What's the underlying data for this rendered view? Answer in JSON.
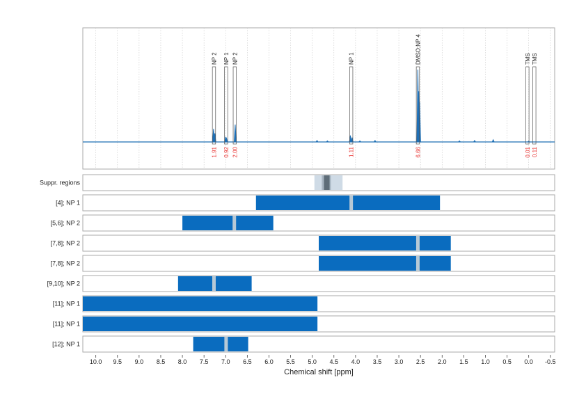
{
  "colors": {
    "spectrum": "#1f6fb4",
    "bar": "#0a6cbf",
    "bar_marker": "#b7c9d6",
    "integral_text": "#e8312f",
    "panel_border": "#aaaaaa",
    "supp_light": "#cfdbe6",
    "supp_mid": "#a8b6c2",
    "supp_dark": "#5e6d78"
  },
  "chart_data": {
    "type": "line",
    "xlabel": "Chemical shift [ppm]",
    "xlim": [
      10.3,
      -0.6
    ],
    "x_ticks": [
      10.0,
      9.5,
      9.0,
      8.5,
      8.0,
      7.5,
      7.0,
      6.5,
      6.0,
      5.5,
      5.0,
      4.5,
      4.0,
      3.5,
      3.0,
      2.5,
      2.0,
      1.5,
      1.0,
      0.5,
      0.0,
      -0.5
    ],
    "x_tick_labels": [
      "10.0",
      "9.5",
      "9.0",
      "8.5",
      "8.0",
      "7.5",
      "7.0",
      "6.5",
      "6.0",
      "5.5",
      "5.0",
      "4.5",
      "4.0",
      "3.5",
      "3.0",
      "2.5",
      "2.0",
      "1.5",
      "1.0",
      "0.5",
      "0.0",
      "-0.5"
    ],
    "grid": true,
    "spectrum_peaks": [
      {
        "ppm": 7.28,
        "height": 0.18
      },
      {
        "ppm": 7.25,
        "height": 0.12
      },
      {
        "ppm": 7.0,
        "height": 0.07
      },
      {
        "ppm": 6.98,
        "height": 0.05
      },
      {
        "ppm": 6.78,
        "height": 0.24
      },
      {
        "ppm": 4.89,
        "height": 0.02
      },
      {
        "ppm": 4.65,
        "height": 0.015
      },
      {
        "ppm": 4.12,
        "height": 0.09
      },
      {
        "ppm": 4.08,
        "height": 0.06
      },
      {
        "ppm": 3.9,
        "height": 0.015
      },
      {
        "ppm": 3.55,
        "height": 0.02
      },
      {
        "ppm": 2.56,
        "height": 1.0
      },
      {
        "ppm": 2.52,
        "height": 0.55
      },
      {
        "ppm": 2.54,
        "height": 0.7
      },
      {
        "ppm": 1.6,
        "height": 0.015
      },
      {
        "ppm": 1.25,
        "height": 0.02
      },
      {
        "ppm": 0.82,
        "height": 0.03
      },
      {
        "ppm": 0.0,
        "height": 0.01
      }
    ],
    "annotations": [
      {
        "label": "NP 2",
        "ppm": 7.27,
        "integral": "1.91"
      },
      {
        "label": "NP 1",
        "ppm": 6.99,
        "integral": "0.92"
      },
      {
        "label": "NP 2",
        "ppm": 6.79,
        "integral": "2.00"
      },
      {
        "label": "NP 1",
        "ppm": 4.1,
        "integral": "1.11"
      },
      {
        "label": "DMSO;NP 4",
        "ppm": 2.56,
        "integral": "6.66"
      },
      {
        "label": "TMS",
        "ppm": 0.03,
        "integral": "0.01"
      },
      {
        "label": "TMS",
        "ppm": -0.13,
        "integral": "0.11"
      }
    ],
    "suppression_regions": {
      "label": "Suppr. regions",
      "outer": [
        4.95,
        4.3
      ],
      "inner": [
        4.78,
        4.57
      ],
      "core": [
        4.73,
        4.6
      ]
    },
    "ranges": [
      {
        "label": "[4]; NP 1",
        "start": 6.3,
        "end": 2.05,
        "marker": 4.1
      },
      {
        "label": "[5,6]; NP 2",
        "start": 8.0,
        "end": 5.9,
        "marker": 6.8
      },
      {
        "label": "[7,8]; NP 2",
        "start": 4.85,
        "end": 1.8,
        "marker": 2.56
      },
      {
        "label": "[7,8]; NP 2",
        "start": 4.85,
        "end": 1.8,
        "marker": 2.56
      },
      {
        "label": "[9,10]; NP 2",
        "start": 8.1,
        "end": 6.4,
        "marker": 7.27
      },
      {
        "label": "[11]; NP 1",
        "start": 10.3,
        "end": 4.88,
        "marker": null
      },
      {
        "label": "[11]; NP 1",
        "start": 10.3,
        "end": 4.88,
        "marker": null
      },
      {
        "label": "[12]; NP 1",
        "start": 7.75,
        "end": 6.48,
        "marker": 6.99
      }
    ]
  }
}
